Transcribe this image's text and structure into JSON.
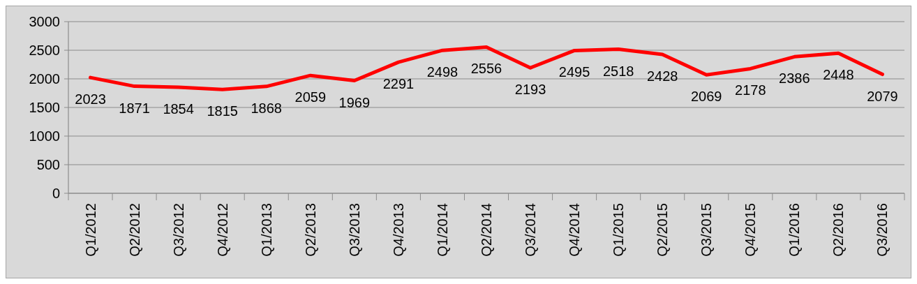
{
  "chart_data": {
    "type": "line",
    "categories": [
      "Q1/2012",
      "Q2/2012",
      "Q3/2012",
      "Q4/2012",
      "Q1/2013",
      "Q2/2013",
      "Q3/2013",
      "Q4/2013",
      "Q1/2014",
      "Q2/2014",
      "Q3/2014",
      "Q4/2014",
      "Q1/2015",
      "Q2/2015",
      "Q3/2015",
      "Q4/2015",
      "Q1/2016",
      "Q2/2016",
      "Q3/2016"
    ],
    "values": [
      2023,
      1871,
      1854,
      1815,
      1868,
      2059,
      1969,
      2291,
      2498,
      2556,
      2193,
      2495,
      2518,
      2428,
      2069,
      2178,
      2386,
      2448,
      2079
    ],
    "color": "#ff0000",
    "ylim": [
      0,
      3000
    ],
    "yticks": [
      0,
      500,
      1000,
      1500,
      2000,
      2500,
      3000
    ],
    "grid": "y",
    "data_labels": true
  }
}
